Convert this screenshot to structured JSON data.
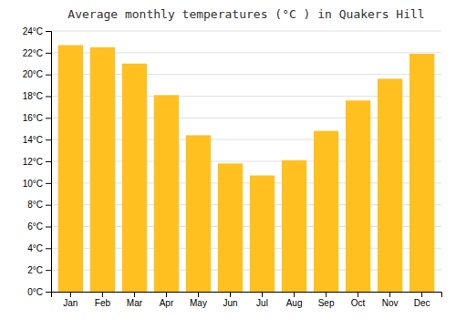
{
  "chart_data": {
    "type": "bar",
    "title": "Average monthly temperatures (°C ) in Quakers Hill",
    "categories": [
      "Jan",
      "Feb",
      "Mar",
      "Apr",
      "May",
      "Jun",
      "Jul",
      "Aug",
      "Sep",
      "Oct",
      "Nov",
      "Dec"
    ],
    "values": [
      22.7,
      22.5,
      21.0,
      18.1,
      14.4,
      11.8,
      10.7,
      12.1,
      14.8,
      17.6,
      19.6,
      21.9
    ],
    "color": "#FFC020",
    "ylim": [
      0,
      24
    ],
    "yticks": [
      {
        "value": 0,
        "label": "0°C"
      },
      {
        "value": 2,
        "label": "2°C"
      },
      {
        "value": 4,
        "label": "4°C"
      },
      {
        "value": 6,
        "label": "6°C"
      },
      {
        "value": 8,
        "label": "8°C"
      },
      {
        "value": 10,
        "label": "10°C"
      },
      {
        "value": 12,
        "label": "12°C"
      },
      {
        "value": 14,
        "label": "14°C"
      },
      {
        "value": 16,
        "label": "16°C"
      },
      {
        "value": 18,
        "label": "18°C"
      },
      {
        "value": 20,
        "label": "20°C"
      },
      {
        "value": 22,
        "label": "22°C"
      },
      {
        "value": 24,
        "label": "24°C"
      }
    ],
    "grid": true
  }
}
